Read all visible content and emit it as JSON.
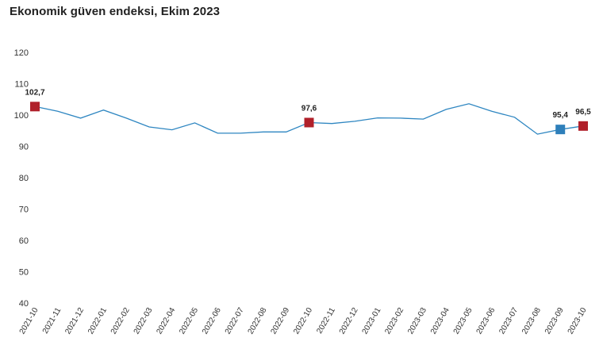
{
  "chart_data": {
    "type": "line",
    "title": "Ekonomik güven endeksi, Ekim 2023",
    "xlabel": "",
    "ylabel": "",
    "ylim": [
      40,
      120
    ],
    "yticks": [
      40,
      50,
      60,
      70,
      80,
      90,
      100,
      110,
      120
    ],
    "grid": false,
    "categories": [
      "2021-10",
      "2021-11",
      "2021-12",
      "2022-01",
      "2022-02",
      "2022-03",
      "2022-04",
      "2022-05",
      "2022-06",
      "2022-07",
      "2022-08",
      "2022-09",
      "2022-10",
      "2022-11",
      "2022-12",
      "2023-01",
      "2023-02",
      "2023-03",
      "2023-04",
      "2023-05",
      "2023-06",
      "2023-07",
      "2023-08",
      "2023-09",
      "2023-10"
    ],
    "series": [
      {
        "values": [
          102.7,
          101.2,
          99.0,
          101.6,
          99.0,
          96.2,
          95.3,
          97.5,
          94.2,
          94.2,
          94.6,
          94.6,
          97.6,
          97.3,
          98.0,
          99.1,
          99.0,
          98.7,
          101.8,
          103.6,
          101.2,
          99.3,
          93.9,
          95.4,
          96.5
        ],
        "color": "#2e86c1"
      }
    ],
    "highlights": [
      {
        "index": 0,
        "label": "102,7",
        "color": "#b0202a"
      },
      {
        "index": 12,
        "label": "97,6",
        "color": "#b0202a"
      },
      {
        "index": 23,
        "label": "95,4",
        "color": "#2e7fba"
      },
      {
        "index": 24,
        "label": "96,5",
        "color": "#b0202a"
      }
    ]
  }
}
